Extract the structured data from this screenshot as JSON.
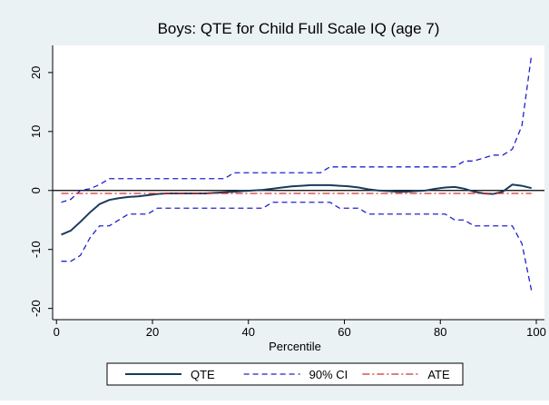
{
  "chart_data": {
    "type": "line",
    "title": "Boys: QTE for Child Full Scale IQ (age 7)",
    "x_label": "Percentile",
    "x": [
      1,
      3,
      5,
      7,
      9,
      11,
      13,
      15,
      17,
      19,
      21,
      23,
      25,
      27,
      29,
      31,
      33,
      35,
      37,
      39,
      41,
      43,
      45,
      47,
      49,
      51,
      53,
      55,
      57,
      59,
      61,
      63,
      65,
      67,
      69,
      71,
      73,
      75,
      77,
      79,
      81,
      83,
      85,
      87,
      89,
      91,
      93,
      95,
      97,
      99
    ],
    "series": [
      {
        "name": "QTE",
        "color": "#1a3a5c",
        "dash": "solid",
        "values": [
          -7.5,
          -6.8,
          -5.3,
          -3.7,
          -2.3,
          -1.6,
          -1.3,
          -1.1,
          -1.0,
          -0.8,
          -0.6,
          -0.5,
          -0.5,
          -0.5,
          -0.5,
          -0.5,
          -0.4,
          -0.3,
          -0.2,
          -0.1,
          0,
          0.1,
          0.3,
          0.5,
          0.7,
          0.8,
          0.9,
          0.9,
          0.9,
          0.8,
          0.7,
          0.5,
          0.2,
          0,
          -0.1,
          -0.2,
          -0.2,
          -0.1,
          0,
          0.3,
          0.5,
          0.6,
          0.3,
          -0.2,
          -0.5,
          -0.6,
          -0.2,
          1.0,
          0.8,
          0.4
        ]
      },
      {
        "name": "90% CI",
        "color": "#2020d0",
        "dash": "dash",
        "values": [
          -2,
          -1.5,
          0,
          0.3,
          1,
          2,
          2,
          2,
          2,
          2,
          2,
          2,
          2,
          2,
          2,
          2,
          2,
          2,
          3,
          3,
          3,
          3,
          3,
          3,
          3,
          3,
          3,
          3,
          4,
          4,
          4,
          4,
          4,
          4,
          4,
          4,
          4,
          4,
          4,
          4,
          4,
          4,
          5,
          5,
          5.5,
          6,
          6,
          7,
          11,
          23
        ]
      },
      {
        "name": "90% CI lower",
        "legend": false,
        "color": "#2020d0",
        "dash": "dash",
        "values": [
          -12,
          -12,
          -11,
          -8,
          -6,
          -6,
          -5,
          -4,
          -4,
          -4,
          -3,
          -3,
          -3,
          -3,
          -3,
          -3,
          -3,
          -3,
          -3,
          -3,
          -3,
          -3,
          -2,
          -2,
          -2,
          -2,
          -2,
          -2,
          -2,
          -3,
          -3,
          -3,
          -4,
          -4,
          -4,
          -4,
          -4,
          -4,
          -4,
          -4,
          -4,
          -5,
          -5,
          -6,
          -6,
          -6,
          -6,
          -6,
          -9,
          -17
        ]
      },
      {
        "name": "ATE",
        "color": "#d03030",
        "dash": "dashdot",
        "x": [
          1,
          99
        ],
        "values": [
          -0.5,
          -0.5
        ]
      }
    ],
    "xlim": [
      -0.8,
      101.7
    ],
    "ylim": [
      -21.9,
      24.6
    ],
    "xticks": [
      0,
      20,
      40,
      60,
      80,
      100
    ],
    "yticks": [
      -20,
      -10,
      0,
      10,
      20
    ],
    "yline": 0,
    "grid": false,
    "legend": "bottom"
  }
}
